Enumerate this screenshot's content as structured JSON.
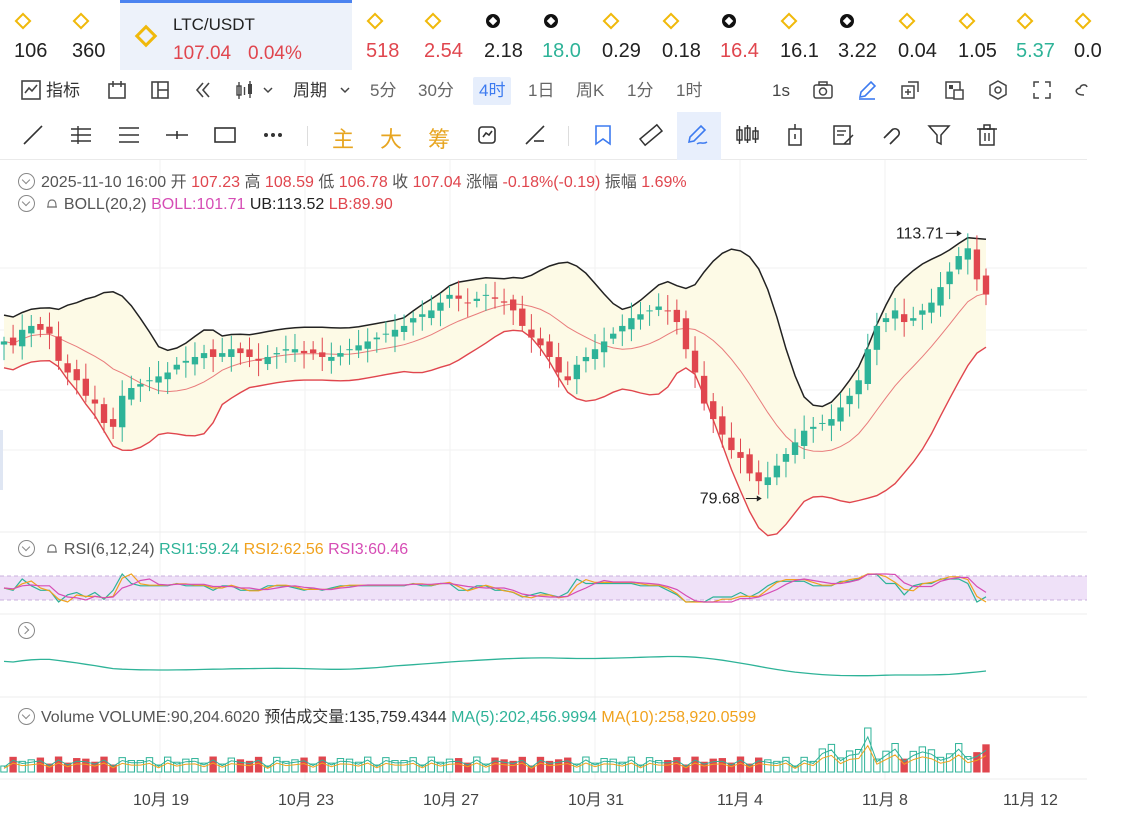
{
  "ticker_items": [
    {
      "icon": "bnb-icon",
      "value": "106",
      "color": "#222222"
    },
    {
      "icon": "bnb-icon",
      "value": "360",
      "color": "#222222"
    },
    {
      "icon": "bnb-icon",
      "value": "518",
      "color": "#e0464e"
    },
    {
      "icon": "bnb-icon",
      "value": "2.54",
      "color": "#e0464e"
    },
    {
      "icon": "okx-icon",
      "value": "2.18",
      "color": "#222222"
    },
    {
      "icon": "okx-icon",
      "value": "18.0",
      "color": "#2eb398"
    },
    {
      "icon": "bnb-icon",
      "value": "0.29",
      "color": "#222222"
    },
    {
      "icon": "bnb-icon",
      "value": "0.18",
      "color": "#222222"
    },
    {
      "icon": "okx-icon",
      "value": "16.4",
      "color": "#e0464e"
    },
    {
      "icon": "bnb-icon",
      "value": "16.1",
      "color": "#222222"
    },
    {
      "icon": "okx-icon",
      "value": "3.22",
      "color": "#222222"
    },
    {
      "icon": "bnb-icon",
      "value": "0.04",
      "color": "#222222"
    },
    {
      "icon": "bnb-icon",
      "value": "1.05",
      "color": "#222222"
    },
    {
      "icon": "bnb-icon",
      "value": "5.37",
      "color": "#2eb398"
    },
    {
      "icon": "bnb-icon",
      "value": "0.0",
      "color": "#222222"
    }
  ],
  "active_ticker": {
    "pair": "LTC/USDT",
    "price": "107.04",
    "change": "0.04%"
  },
  "toolbar": {
    "indicators_label": "指标",
    "period_label": "周期",
    "periods": [
      "5分",
      "30分",
      "4时",
      "1日",
      "周K",
      "1分",
      "1时"
    ],
    "active_period": "4时",
    "refresh": "1s"
  },
  "drawing_tools": {
    "zhu": "主",
    "da": "大",
    "chou": "筹"
  },
  "ohlc": {
    "date": "2025-11-10 16:00",
    "open_label": "开",
    "open": "107.23",
    "high_label": "高",
    "high": "108.59",
    "low_label": "低",
    "low": "106.78",
    "close_label": "收",
    "close": "107.04",
    "change_label": "涨幅",
    "change": "-0.18%(-0.19)",
    "amp_label": "振幅",
    "amp": "1.69%"
  },
  "boll": {
    "name": "BOLL(20,2)",
    "mid": "BOLL:101.71",
    "ub": "UB:113.52",
    "lb": "LB:89.90"
  },
  "rsi": {
    "name": "RSI(6,12,24)",
    "rsi1": "RSI1:59.24",
    "rsi2": "RSI2:62.56",
    "rsi3": "RSI3:60.46"
  },
  "volume": {
    "name": "Volume",
    "vol": "VOLUME:90,204.6020",
    "est": "预估成交量:135,759.4344",
    "ma5": "MA(5):202,456.9994",
    "ma10": "MA(10):258,920.0599"
  },
  "markers": {
    "high": "113.71",
    "low": "79.68"
  },
  "x_ticks": [
    "10月 19",
    "10月 23",
    "10月 27",
    "10月 31",
    "11月 4",
    "11月 8",
    "11月 12"
  ],
  "colors": {
    "up": "#2eb398",
    "down": "#e0464e",
    "accent": "#3d7bf0",
    "boll_upper": "#222222",
    "boll_lower": "#e0464e",
    "boll_fill": "#fdfae6",
    "rsi1": "#2eb398",
    "rsi2": "#f0a21d",
    "rsi3": "#d64db5"
  },
  "chart_data": {
    "type": "candlestick",
    "timeframe": "4H",
    "y_range_estimate": [
      78,
      116
    ],
    "closes": [
      101,
      100.5,
      102.5,
      103,
      102.5,
      102,
      98.5,
      97,
      96,
      94,
      93,
      90.5,
      90,
      94,
      95,
      95.5,
      96,
      96.5,
      97,
      98,
      98.5,
      99,
      99.5,
      99,
      99.5,
      100,
      99.5,
      99,
      98.5,
      99,
      99.5,
      100,
      100,
      99.5,
      99.5,
      99,
      99,
      99.5,
      100,
      100.5,
      101,
      101.5,
      102,
      102.5,
      103,
      104,
      104.5,
      105,
      106,
      107,
      106.5,
      106,
      106.5,
      107,
      106.5,
      106,
      105,
      103,
      101.5,
      100.5,
      99,
      97,
      96,
      98,
      99,
      100,
      101,
      102,
      103,
      104,
      104.5,
      105,
      105.5,
      105,
      103.5,
      100,
      97,
      93,
      91,
      89,
      87,
      86,
      84,
      83,
      83.5,
      85,
      86.5,
      88,
      89.5,
      90,
      90.5,
      91,
      92.5,
      94,
      96,
      100,
      103,
      104,
      105,
      103.5,
      104,
      105,
      106,
      108,
      110,
      112,
      113,
      109,
      107.04
    ]
  }
}
